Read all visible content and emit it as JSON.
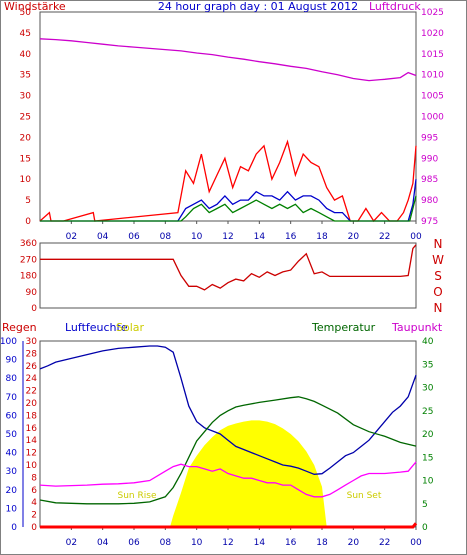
{
  "chart_data": [
    {
      "type": "line",
      "title": "24 hour graph day : 01 August 2012",
      "left_axis_label": "Windstärke",
      "right_axis_label": "Luftdruck",
      "x_ticks": [
        "02",
        "04",
        "06",
        "08",
        "10",
        "12",
        "14",
        "16",
        "18",
        "20",
        "22",
        "00"
      ],
      "y_left_ticks": [
        "0",
        "5",
        "10",
        "15",
        "20",
        "25",
        "30",
        "35",
        "40",
        "45",
        "50"
      ],
      "y_left_range": [
        0,
        50
      ],
      "y_right_ticks": [
        "975",
        "980",
        "985",
        "990",
        "995",
        "1000",
        "1005",
        "1010",
        "1015",
        "1020",
        "1025"
      ],
      "y_right_range": [
        975,
        1025
      ],
      "series": [
        {
          "key": "luftdruck",
          "axis": "right",
          "color": "#cc00cc",
          "x": [
            0,
            1,
            2,
            3,
            4,
            5,
            6,
            7,
            8,
            9,
            10,
            11,
            12,
            13,
            14,
            15,
            16,
            17,
            18,
            19,
            20,
            21,
            22,
            23,
            23.5,
            24
          ],
          "y": [
            1018.6,
            1018.4,
            1018.1,
            1017.7,
            1017.3,
            1016.9,
            1016.6,
            1016.3,
            1016.0,
            1015.7,
            1015.2,
            1014.8,
            1014.2,
            1013.7,
            1013.1,
            1012.6,
            1012.0,
            1011.5,
            1010.7,
            1010.0,
            1009.1,
            1008.6,
            1008.9,
            1009.3,
            1010.5,
            1009.8
          ]
        },
        {
          "key": "wind_gust",
          "axis": "left",
          "color": "#ff0000",
          "x": [
            0,
            0.6,
            0.7,
            1.5,
            3.4,
            3.5,
            8.8,
            9.3,
            9.8,
            10.3,
            10.8,
            11.3,
            11.8,
            12.3,
            12.8,
            13.3,
            13.8,
            14.3,
            14.8,
            15.3,
            15.8,
            16.3,
            16.8,
            17.3,
            17.8,
            18.3,
            18.8,
            19.3,
            19.8,
            20.3,
            20.8,
            21.3,
            21.8,
            22.3,
            22.8,
            23.2,
            23.5,
            23.8,
            24
          ],
          "y": [
            0,
            2,
            0,
            0,
            2,
            0,
            2,
            12,
            9,
            16,
            7,
            11,
            15,
            8,
            13,
            12,
            16,
            18,
            10,
            14,
            19,
            11,
            16,
            14,
            13,
            8,
            5,
            6,
            0,
            0,
            3,
            0,
            2,
            0,
            0,
            2,
            5,
            9,
            18
          ]
        },
        {
          "key": "wind_mean",
          "axis": "left",
          "color": "#0000cc",
          "x": [
            0,
            8.8,
            9.3,
            9.8,
            10.3,
            10.8,
            11.3,
            11.8,
            12.3,
            12.8,
            13.3,
            13.8,
            14.3,
            14.8,
            15.3,
            15.8,
            16.3,
            16.8,
            17.3,
            17.8,
            18.3,
            18.8,
            19.3,
            19.8,
            23.5,
            23.8,
            24
          ],
          "y": [
            0,
            0,
            3,
            4,
            5,
            3,
            4,
            6,
            4,
            5,
            5,
            7,
            6,
            6,
            5,
            7,
            5,
            6,
            6,
            5,
            3,
            2,
            2,
            0,
            0,
            4,
            10
          ]
        },
        {
          "key": "wind_low",
          "axis": "left",
          "color": "#008000",
          "x": [
            0,
            9.0,
            9.3,
            9.8,
            10.3,
            10.8,
            11.3,
            11.8,
            12.3,
            12.8,
            13.3,
            13.8,
            14.3,
            14.8,
            15.3,
            15.8,
            16.3,
            16.8,
            17.3,
            17.8,
            18.3,
            18.8,
            23.6,
            23.8,
            24
          ],
          "y": [
            0,
            0,
            1,
            3,
            4,
            2,
            3,
            4,
            2,
            3,
            4,
            5,
            4,
            3,
            4,
            3,
            4,
            2,
            3,
            2,
            1,
            0,
            0,
            3,
            6
          ]
        }
      ]
    },
    {
      "type": "line",
      "title": "",
      "left_axis_label": "",
      "direction_labels": [
        "N",
        "W",
        "S",
        "O",
        "N"
      ],
      "y_left_ticks": [
        "0",
        "90",
        "180",
        "270",
        "360"
      ],
      "y_left_range": [
        0,
        360
      ],
      "series": [
        {
          "key": "wind_direction",
          "axis": "left",
          "color": "#cc0000",
          "x": [
            0,
            8.5,
            9.0,
            9.5,
            10.0,
            10.5,
            11.0,
            11.5,
            12.0,
            12.5,
            13.0,
            13.5,
            14.0,
            14.5,
            15.0,
            15.5,
            16.0,
            16.5,
            17.0,
            17.5,
            18.0,
            18.5,
            19.0,
            20.0,
            21.0,
            22.0,
            23.0,
            23.5,
            23.8,
            24
          ],
          "y": [
            270,
            270,
            180,
            120,
            120,
            100,
            130,
            110,
            140,
            160,
            150,
            190,
            170,
            200,
            180,
            200,
            210,
            260,
            300,
            190,
            200,
            175,
            175,
            175,
            175,
            175,
            175,
            180,
            330,
            350
          ]
        }
      ]
    },
    {
      "type": "line",
      "title": "",
      "axis_labels": {
        "regen": "Regen",
        "luftfeuchte": "Luftfeuchte",
        "solar": "Solar",
        "temperatur": "Temperatur",
        "taupunkt": "Taupunkt"
      },
      "annotations": {
        "sunrise": "Sun Rise",
        "sunset": "Sun Set"
      },
      "x_ticks": [
        "02",
        "04",
        "06",
        "08",
        "10",
        "12",
        "14",
        "16",
        "18",
        "20",
        "22",
        "00"
      ],
      "regen_ticks": [
        "0",
        "10",
        "20",
        "30",
        "40",
        "50",
        "60",
        "70",
        "80",
        "90",
        "100"
      ],
      "regen_range": [
        0,
        100
      ],
      "luftfeuchte_ticks": [
        "0",
        "2",
        "4",
        "6",
        "8",
        "10",
        "12",
        "14",
        "16",
        "18",
        "20",
        "22",
        "24",
        "26",
        "28",
        "30"
      ],
      "luftfeuchte_range": [
        0,
        30
      ],
      "temperatur_ticks": [
        "0",
        "5",
        "10",
        "15",
        "20",
        "25",
        "30",
        "35",
        "40"
      ],
      "temperatur_range": [
        0,
        40
      ],
      "series": [
        {
          "key": "luftfeuchte",
          "axis": "luftfeuchte",
          "color": "#0000aa",
          "x": [
            0,
            0.5,
            1,
            2,
            3,
            4,
            5,
            6,
            7,
            7.5,
            8,
            8.5,
            9,
            9.5,
            10,
            10.5,
            11,
            11.5,
            12,
            12.5,
            13,
            13.5,
            14,
            14.5,
            15,
            15.5,
            16,
            16.5,
            17,
            17.5,
            18,
            18.5,
            19,
            19.5,
            20,
            20.5,
            21,
            21.5,
            22,
            22.5,
            23,
            23.5,
            24
          ],
          "y": [
            25.5,
            26.0,
            26.6,
            27.2,
            27.8,
            28.4,
            28.8,
            29.0,
            29.2,
            29.2,
            29.0,
            28.2,
            24.0,
            19.5,
            17.0,
            16.0,
            15.5,
            15.0,
            14.0,
            13.0,
            12.5,
            12.0,
            11.5,
            11.0,
            10.5,
            10.0,
            9.8,
            9.5,
            9.0,
            8.5,
            8.6,
            9.5,
            10.5,
            11.5,
            12.0,
            13.0,
            14.0,
            15.5,
            17.0,
            18.5,
            19.5,
            21.0,
            24.5
          ]
        },
        {
          "key": "temperatur",
          "axis": "temperatur",
          "color": "#006600",
          "x": [
            0,
            1,
            2,
            3,
            4,
            5,
            6,
            7,
            8,
            8.5,
            9,
            9.5,
            10,
            10.5,
            11,
            11.5,
            12,
            12.5,
            13,
            14,
            15,
            16,
            16.5,
            17,
            17.5,
            18,
            19,
            20,
            21,
            22,
            23,
            24
          ],
          "y": [
            5.8,
            5.2,
            5.1,
            5.0,
            5.0,
            5.0,
            5.1,
            5.4,
            6.5,
            8.5,
            11.5,
            15.0,
            18.5,
            20.5,
            22.5,
            24.0,
            25.0,
            25.8,
            26.2,
            26.8,
            27.3,
            27.8,
            28.0,
            27.6,
            27.0,
            26.2,
            24.5,
            22.0,
            20.5,
            19.5,
            18.2,
            17.4
          ]
        },
        {
          "key": "taupunkt",
          "axis": "temperatur",
          "color": "#ff00ff",
          "x": [
            0,
            1,
            2,
            3,
            4,
            5,
            6,
            7,
            8,
            8.5,
            9,
            9.5,
            10,
            10.5,
            11,
            11.5,
            12,
            12.5,
            13,
            13.5,
            14,
            14.5,
            15,
            15.5,
            16,
            16.5,
            17,
            17.5,
            18,
            18.5,
            19,
            19.5,
            20,
            20.5,
            21,
            22,
            23,
            23.5,
            24
          ],
          "y": [
            9.0,
            8.8,
            8.9,
            9.0,
            9.2,
            9.3,
            9.5,
            10.0,
            12.0,
            13.0,
            13.5,
            13.0,
            13.0,
            12.5,
            12.0,
            12.5,
            11.5,
            11.0,
            10.5,
            10.5,
            10.0,
            9.5,
            9.5,
            9.0,
            9.0,
            8.0,
            7.0,
            6.5,
            6.5,
            7.0,
            8.0,
            9.0,
            10.0,
            11.0,
            11.5,
            11.5,
            11.8,
            12.0,
            14.0
          ]
        },
        {
          "key": "solar",
          "axis": "luftfeuchte",
          "color": "#ffff00",
          "x": [
            8.3,
            8.5,
            9,
            9.5,
            10,
            10.5,
            11,
            11.5,
            12,
            12.5,
            13,
            13.5,
            14,
            14.5,
            15,
            15.5,
            16,
            16.5,
            17,
            17.5,
            18,
            18.3
          ],
          "y": [
            0,
            1.8,
            5.5,
            9.5,
            11.5,
            13.2,
            14.5,
            15.6,
            16.3,
            16.7,
            17.0,
            17.2,
            17.2,
            17.0,
            16.6,
            15.9,
            15.0,
            13.8,
            12.2,
            10.0,
            6.5,
            0
          ]
        },
        {
          "key": "regen",
          "axis": "regen",
          "color": "#ff0000",
          "x": [
            0,
            23.5,
            23.8,
            24
          ],
          "y": [
            0,
            0,
            0,
            2
          ]
        }
      ]
    }
  ]
}
